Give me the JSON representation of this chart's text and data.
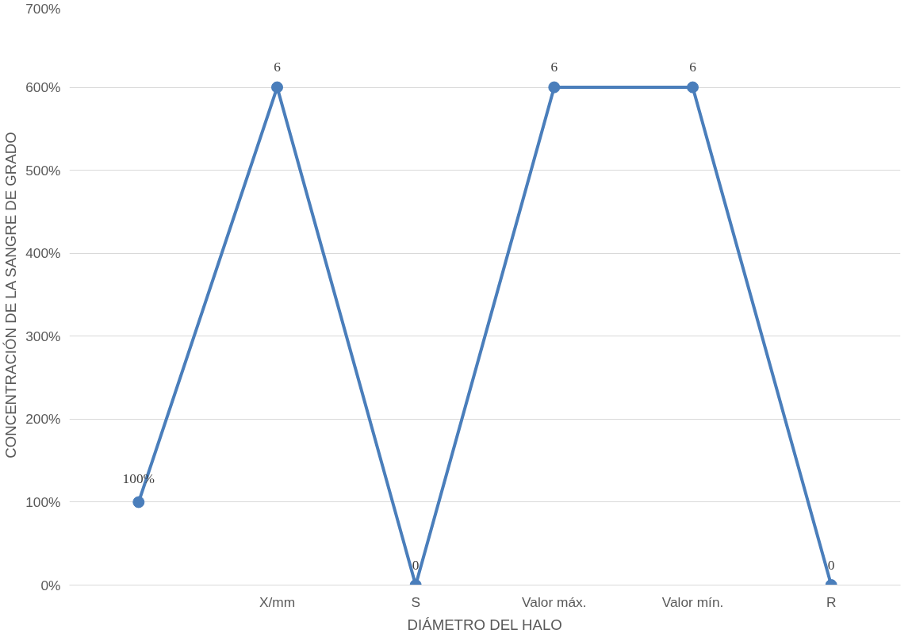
{
  "chart_data": {
    "type": "line",
    "xlabel": "DIÁMETRO DEL HALO",
    "ylabel": "CONCENTRACIÓN DE LA SANGRE DE GRADO",
    "categories": [
      null,
      "X/mm",
      "S",
      "Valor máx.",
      "Valor mín.",
      "R"
    ],
    "series": [
      {
        "color": "#4a7ebb",
        "values": [
          1,
          6,
          0,
          6,
          6,
          0
        ],
        "value_labels": [
          "100%",
          "6",
          "0",
          "6",
          "6",
          "0"
        ]
      }
    ],
    "ylim": [
      0,
      7
    ],
    "yticks": [
      {
        "value": 0,
        "label": "0%"
      },
      {
        "value": 1,
        "label": "100%"
      },
      {
        "value": 2,
        "label": "200%"
      },
      {
        "value": 3,
        "label": "300%"
      },
      {
        "value": 4,
        "label": "400%"
      },
      {
        "value": 5,
        "label": "500%"
      },
      {
        "value": 6,
        "label": "600%"
      },
      {
        "value": 7,
        "label": "700%"
      }
    ],
    "grid": "y",
    "marker": "circle",
    "line_style": "solid"
  }
}
